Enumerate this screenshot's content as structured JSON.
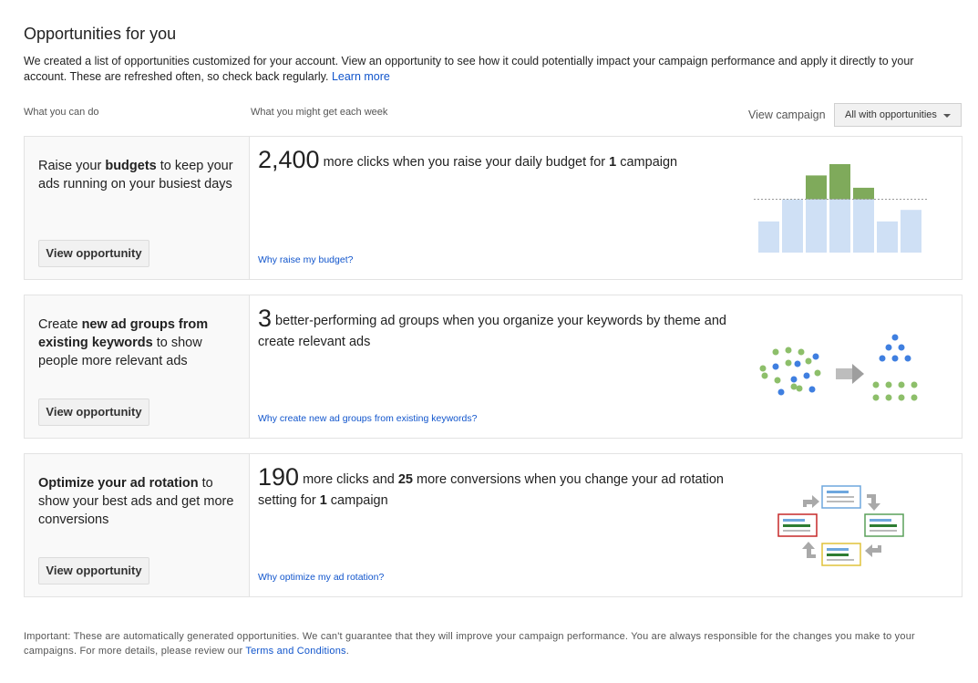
{
  "page": {
    "title": "Opportunities for you",
    "intro_text": "We created a list of opportunities customized for your account. View an opportunity to see how it could potentially impact your campaign performance and apply it directly to your account. These are refreshed often, so check back regularly.",
    "learn_more": "Learn more"
  },
  "columns": {
    "left_header": "What you can do",
    "right_header": "What you might get each week"
  },
  "filter": {
    "label": "View campaign",
    "selected": "All with opportunities"
  },
  "opportunities": [
    {
      "desc_pre": "Raise your ",
      "desc_bold": "budgets",
      "desc_post": " to keep your ads running on your busiest days",
      "button": "View opportunity",
      "big_number": "2,400",
      "stmt_a": " more clicks when you raise your daily budget for ",
      "stmt_b": "1",
      "stmt_c": " campaign",
      "why_link": "Why raise my budget?",
      "chart_base": [
        0.38,
        0.65,
        0.65,
        0.65,
        0.65,
        0.38,
        0.52
      ],
      "chart_extra": [
        0,
        0,
        0.29,
        0.45,
        0.14,
        0,
        0
      ]
    },
    {
      "desc_pre": "Create ",
      "desc_bold": "new ad groups from existing keywords",
      "desc_post": " to show people more relevant ads",
      "button": "View opportunity",
      "big_number": "3",
      "stmt_a": " better-performing ad groups when you organize your keywords by theme and create relevant ads",
      "why_link": "Why create new ad groups from existing keywords?"
    },
    {
      "desc_bold": "Optimize your ad rotation",
      "desc_post": " to show your best ads and get more conversions",
      "button": "View opportunity",
      "big_number": "190",
      "stmt_a": " more clicks and ",
      "stmt_b": "25",
      "stmt_c": " more conversions when you change your ad rotation setting for ",
      "stmt_d": "1",
      "stmt_e": " campaign",
      "why_link": "Why optimize my ad rotation?"
    }
  ],
  "footer": {
    "text": "Important: These are automatically generated opportunities. We can't guarantee that they will improve your campaign performance. You are always responsible for the changes you make to your campaigns. For more details, please review our",
    "terms_link": "Terms and Conditions",
    "end": "."
  },
  "colors": {
    "link": "#1155cc",
    "bar_base": "#cfe0f5",
    "bar_extra": "#7faa5b",
    "dot_green": "#8dbf6a",
    "dot_blue": "#3f7fe0"
  }
}
